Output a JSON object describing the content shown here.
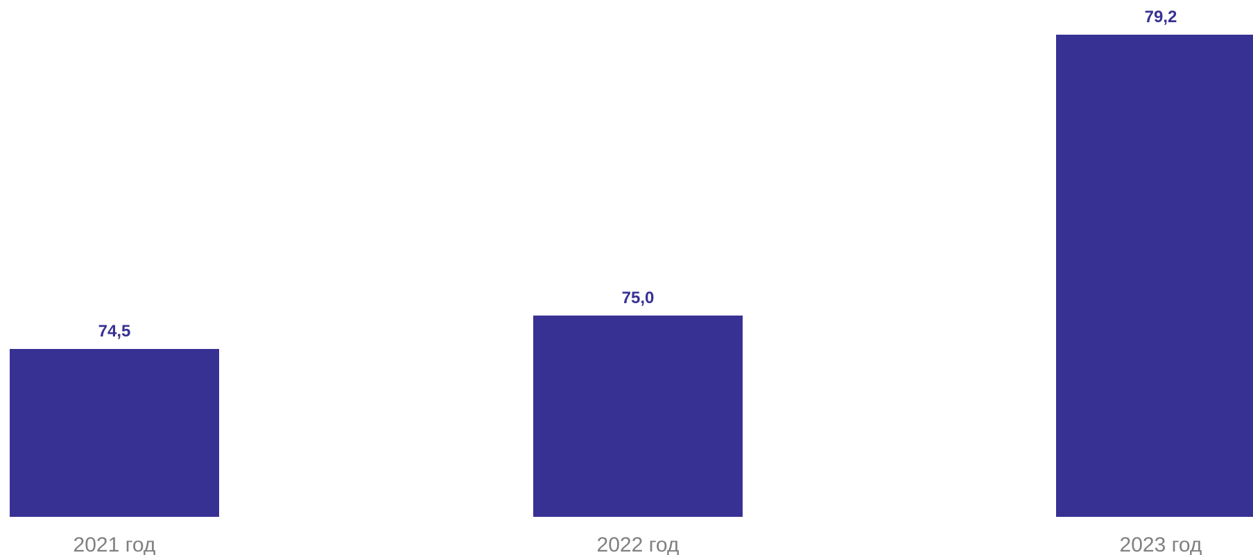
{
  "chart_data": {
    "type": "bar",
    "categories": [
      "2021 год",
      "2022 год",
      "2023 год"
    ],
    "values": [
      74.5,
      75.0,
      79.2
    ],
    "value_labels": [
      "74,5",
      "75,0",
      "79,2"
    ],
    "title": "",
    "xlabel": "",
    "ylabel": "",
    "grid": false,
    "legend": "none",
    "colors": {
      "bar": "#373194",
      "value_label": "#373194",
      "category_label": "#808080",
      "background": "#ffffff"
    }
  }
}
